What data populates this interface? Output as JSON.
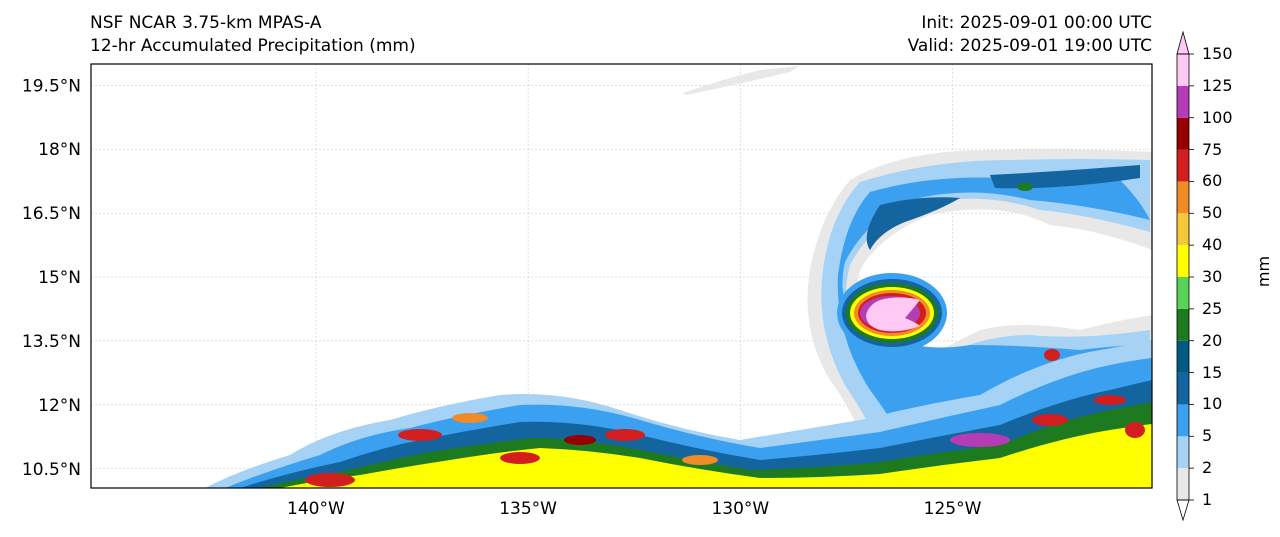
{
  "header": {
    "model": "NSF NCAR 3.75-km MPAS-A",
    "field": "12-hr Accumulated Precipitation (mm)",
    "init": "Init: 2025-09-01 00:00 UTC",
    "valid": "Valid: 2025-09-01 19:00 UTC"
  },
  "map": {
    "lat_labels": [
      "19.5°N",
      "18°N",
      "16.5°N",
      "15°N",
      "13.5°N",
      "12°N",
      "10.5°N"
    ],
    "lat_values": [
      19.5,
      18,
      16.5,
      15,
      13.5,
      12,
      10.5
    ],
    "lon_labels": [
      "140°W",
      "135°W",
      "130°W",
      "125°W"
    ],
    "lon_values": [
      -140,
      -135,
      -130,
      -125
    ],
    "lon_range": [
      -145.3,
      -120.3
    ],
    "lat_range": [
      10.05,
      20.0
    ]
  },
  "colorbar": {
    "unit": "mm",
    "levels": [
      "1",
      "2",
      "5",
      "10",
      "15",
      "20",
      "25",
      "30",
      "40",
      "50",
      "60",
      "75",
      "100",
      "125",
      "150"
    ],
    "colors": [
      "#e8e8e8",
      "#a6d2f5",
      "#3ca0f0",
      "#1464a0",
      "#005a82",
      "#1e7a1e",
      "#5ad25a",
      "#ffff00",
      "#f5c83c",
      "#f08c28",
      "#d21e1e",
      "#960000",
      "#b43cb4",
      "#ffc8f5"
    ]
  }
}
